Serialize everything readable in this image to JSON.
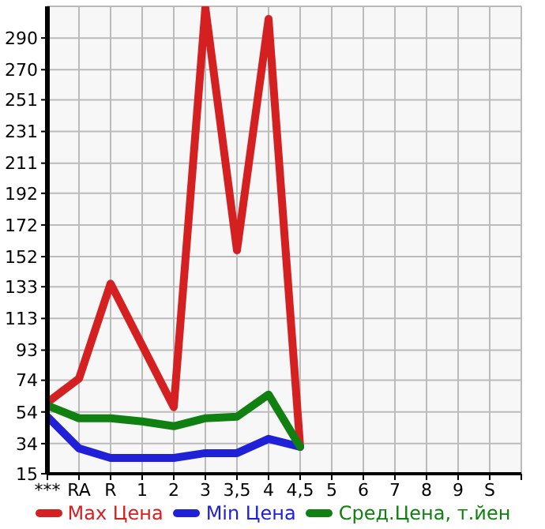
{
  "chart_data": {
    "type": "line",
    "categories": [
      "***",
      "RA",
      "R",
      "1",
      "2",
      "3",
      "3,5",
      "4",
      "4,5",
      "5",
      "6",
      "7",
      "8",
      "9",
      "S"
    ],
    "series": [
      {
        "name": "Max Цена",
        "color": "#d42020",
        "values": [
          60,
          75,
          135,
          96,
          57,
          309,
          156,
          302,
          32,
          null,
          null,
          null,
          null,
          null,
          null
        ]
      },
      {
        "name": "Min Цена",
        "color": "#2020d8",
        "values": [
          51,
          31,
          25,
          25,
          25,
          28,
          28,
          37,
          32,
          null,
          null,
          null,
          null,
          null,
          null
        ]
      },
      {
        "name": "Сред.Цена, т.йен",
        "color": "#108010",
        "values": [
          58,
          50,
          50,
          48,
          45,
          50,
          51,
          65,
          32,
          null,
          null,
          null,
          null,
          null,
          null
        ]
      }
    ],
    "ylim": [
      15,
      310
    ],
    "yticks": [
      15,
      34,
      54,
      74,
      93,
      113,
      133,
      152,
      172,
      192,
      211,
      231,
      251,
      270,
      290
    ],
    "grid": true,
    "legend": "bottom",
    "marker": "none",
    "line_style": "solid"
  }
}
